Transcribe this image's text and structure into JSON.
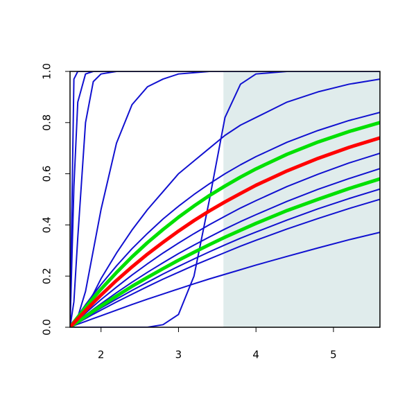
{
  "chart_data": {
    "type": "line",
    "x": [
      1.6,
      1.65,
      1.7,
      1.8,
      1.9,
      2.0,
      2.2,
      2.4,
      2.6,
      2.8,
      3.0,
      3.2,
      3.4,
      3.6,
      3.8,
      4.0,
      4.4,
      4.8,
      5.2,
      5.6
    ],
    "xlim": [
      1.6,
      5.6
    ],
    "xticks": [
      2,
      3,
      4,
      5
    ],
    "ylim": [
      0,
      1
    ],
    "yticks": [
      {
        "value": 0,
        "label": "0.0"
      },
      0.2,
      0.4,
      0.6,
      0.8,
      {
        "value": 1,
        "label": "1.0"
      }
    ],
    "shaded_x_range": [
      3.58,
      5.6
    ],
    "shade_color": "#e0ecec",
    "series": [
      {
        "color": "#1010d0",
        "width": 2,
        "values": [
          0,
          0.97,
          1,
          1,
          1,
          1,
          1,
          1,
          1,
          1,
          1,
          1,
          1,
          1,
          1,
          1,
          1,
          1,
          1,
          1
        ]
      },
      {
        "color": "#1010d0",
        "width": 2,
        "values": [
          0,
          0.55,
          0.88,
          0.99,
          1,
          1,
          1,
          1,
          1,
          1,
          1,
          1,
          1,
          1,
          1,
          1,
          1,
          1,
          1,
          1
        ]
      },
      {
        "color": "#1010d0",
        "width": 2,
        "values": [
          0,
          0.1,
          0.35,
          0.8,
          0.96,
          0.99,
          1,
          1,
          1,
          1,
          1,
          1,
          1,
          1,
          1,
          1,
          1,
          1,
          1,
          1
        ]
      },
      {
        "color": "#1010d0",
        "width": 2,
        "values": [
          0,
          0.01,
          0.04,
          0.14,
          0.3,
          0.46,
          0.72,
          0.87,
          0.94,
          0.97,
          0.99,
          0.995,
          1,
          1,
          1,
          1,
          1,
          1,
          1,
          1
        ]
      },
      {
        "color": "#1010d0",
        "width": 2,
        "values": [
          0,
          0.01,
          0.03,
          0.08,
          0.13,
          0.19,
          0.29,
          0.38,
          0.46,
          0.53,
          0.6,
          0.65,
          0.7,
          0.75,
          0.79,
          0.82,
          0.88,
          0.92,
          0.95,
          0.97
        ]
      },
      {
        "color": "#1010d0",
        "width": 2,
        "values": [
          0,
          0,
          0,
          0,
          0,
          0,
          0,
          0,
          0,
          0.01,
          0.05,
          0.2,
          0.5,
          0.82,
          0.95,
          0.99,
          1,
          1,
          1,
          1
        ]
      },
      {
        "color": "#1010d0",
        "width": 2,
        "values": [
          0,
          0.023,
          0.045,
          0.088,
          0.128,
          0.167,
          0.24,
          0.307,
          0.367,
          0.423,
          0.473,
          0.519,
          0.561,
          0.6,
          0.635,
          0.667,
          0.723,
          0.769,
          0.808,
          0.84
        ]
      },
      {
        "color": "#1010d0",
        "width": 2,
        "values": [
          0,
          0.014,
          0.028,
          0.055,
          0.082,
          0.108,
          0.157,
          0.204,
          0.248,
          0.29,
          0.329,
          0.366,
          0.401,
          0.434,
          0.466,
          0.495,
          0.55,
          0.598,
          0.642,
          0.68
        ]
      },
      {
        "color": "#1010d0",
        "width": 2,
        "values": [
          0,
          0.012,
          0.024,
          0.047,
          0.07,
          0.092,
          0.135,
          0.176,
          0.215,
          0.252,
          0.288,
          0.321,
          0.353,
          0.384,
          0.413,
          0.44,
          0.492,
          0.539,
          0.581,
          0.62
        ]
      },
      {
        "color": "#1010d0",
        "width": 2,
        "values": [
          0,
          0.01,
          0.019,
          0.038,
          0.057,
          0.075,
          0.11,
          0.144,
          0.176,
          0.208,
          0.238,
          0.267,
          0.295,
          0.322,
          0.348,
          0.372,
          0.419,
          0.463,
          0.503,
          0.54
        ]
      },
      {
        "color": "#1010d0",
        "width": 2,
        "values": [
          0,
          0.009,
          0.017,
          0.034,
          0.051,
          0.067,
          0.099,
          0.129,
          0.159,
          0.188,
          0.215,
          0.242,
          0.267,
          0.292,
          0.317,
          0.34,
          0.384,
          0.425,
          0.464,
          0.5
        ]
      },
      {
        "color": "#1010d0",
        "width": 2,
        "values": [
          0,
          0.006,
          0.012,
          0.023,
          0.034,
          0.045,
          0.067,
          0.089,
          0.11,
          0.13,
          0.15,
          0.17,
          0.189,
          0.207,
          0.225,
          0.243,
          0.277,
          0.31,
          0.342,
          0.371
        ]
      },
      {
        "color": "#00e000",
        "width": 5,
        "values": [
          0,
          0.02,
          0.039,
          0.077,
          0.114,
          0.149,
          0.214,
          0.275,
          0.331,
          0.382,
          0.43,
          0.474,
          0.515,
          0.552,
          0.587,
          0.619,
          0.676,
          0.724,
          0.765,
          0.8
        ]
      },
      {
        "color": "#00e000",
        "width": 5,
        "values": [
          0,
          0.011,
          0.021,
          0.042,
          0.063,
          0.083,
          0.122,
          0.16,
          0.195,
          0.229,
          0.262,
          0.293,
          0.323,
          0.352,
          0.379,
          0.406,
          0.456,
          0.5,
          0.542,
          0.58
        ]
      },
      {
        "color": "#ff0000",
        "width": 5,
        "values": [
          0,
          0.017,
          0.033,
          0.065,
          0.096,
          0.126,
          0.183,
          0.236,
          0.286,
          0.332,
          0.376,
          0.417,
          0.455,
          0.49,
          0.523,
          0.555,
          0.611,
          0.66,
          0.703,
          0.74
        ]
      }
    ]
  }
}
